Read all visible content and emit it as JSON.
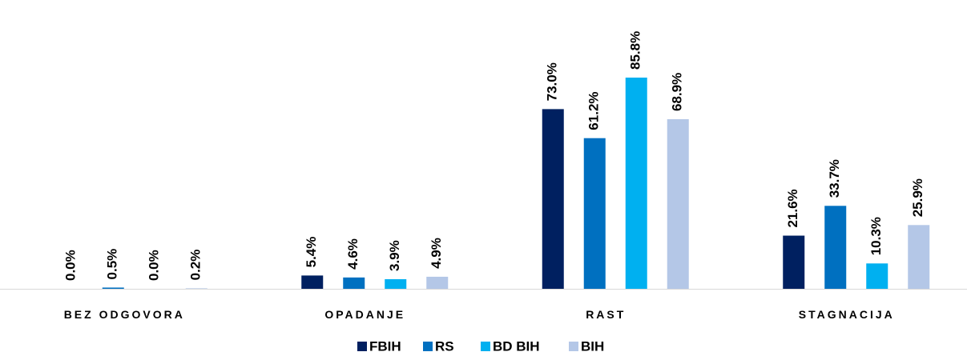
{
  "chart_data": {
    "type": "bar",
    "categories": [
      "BEZ ODGOVORA",
      "OPADANJE",
      "RAST",
      "STAGNACIJA"
    ],
    "series": [
      {
        "name": "FBIH",
        "color": "#002060",
        "values": [
          0.0,
          5.4,
          73.0,
          21.6
        ],
        "value_labels": [
          "0.0%",
          "5.4%",
          "73.0%",
          "21.6%"
        ]
      },
      {
        "name": "RS",
        "color": "#0070c0",
        "values": [
          0.5,
          4.6,
          61.2,
          33.7
        ],
        "value_labels": [
          "0.5%",
          "4.6%",
          "61.2%",
          "33.7%"
        ]
      },
      {
        "name": "BD BIH",
        "color": "#00b0f0",
        "values": [
          0.0,
          3.9,
          85.8,
          10.3
        ],
        "value_labels": [
          "0.0%",
          "3.9%",
          "85.8%",
          "10.3%"
        ]
      },
      {
        "name": "BIH",
        "color": "#b4c7e7",
        "values": [
          0.2,
          4.9,
          68.9,
          25.9
        ],
        "value_labels": [
          "0.2%",
          "4.9%",
          "68.9%",
          "25.9%"
        ]
      }
    ],
    "legend": "bottom"
  }
}
